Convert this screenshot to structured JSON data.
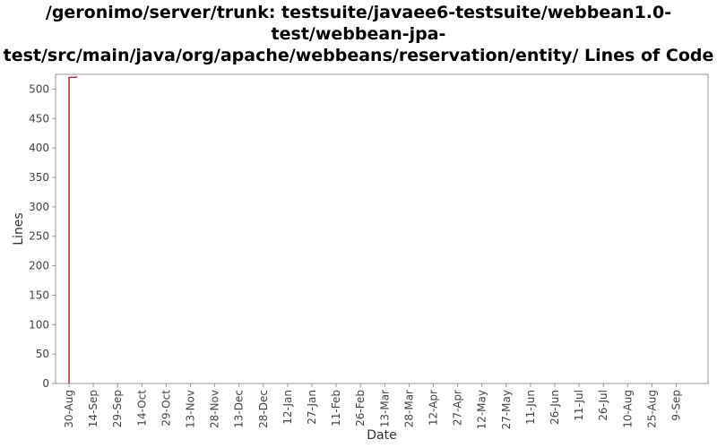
{
  "chart_data": {
    "type": "line",
    "title_lines": [
      "/geronimo/server/trunk: testsuite/javaee6-testsuite/webbean1.0-",
      "test/webbean-jpa-",
      "test/src/main/java/org/apache/webbeans/reservation/entity/ Lines of Code"
    ],
    "xlabel": "Date",
    "ylabel": "Lines",
    "ylim": [
      0,
      525
    ],
    "yticks": [
      0,
      50,
      100,
      150,
      200,
      250,
      300,
      350,
      400,
      450,
      500
    ],
    "xticks": [
      "30-Aug",
      "14-Sep",
      "29-Sep",
      "14-Oct",
      "29-Oct",
      "13-Nov",
      "28-Nov",
      "13-Dec",
      "28-Dec",
      "12-Jan",
      "27-Jan",
      "11-Feb",
      "26-Feb",
      "13-Mar",
      "28-Mar",
      "12-Apr",
      "27-Apr",
      "12-May",
      "27-May",
      "11-Jun",
      "26-Jun",
      "11-Jul",
      "26-Jul",
      "10-Aug",
      "25-Aug",
      "9-Sep"
    ],
    "grid": false,
    "line_color": "#990000",
    "series": [
      {
        "points": [
          {
            "x": "30-Aug",
            "y": 0
          },
          {
            "x": "30-Aug",
            "y": 520
          },
          {
            "x": "3-Sep",
            "y": 520
          },
          {
            "x": "4-Sep",
            "y": 521
          }
        ]
      }
    ]
  }
}
